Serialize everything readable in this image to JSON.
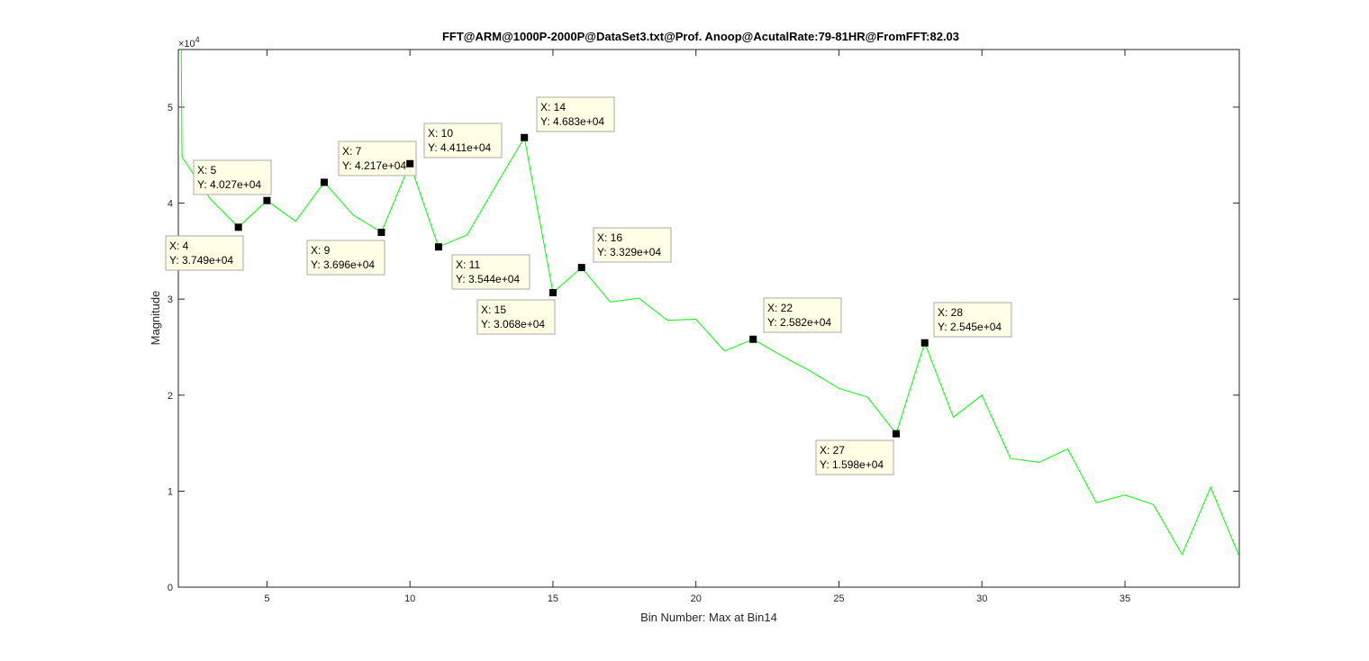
{
  "chart_data": {
    "type": "line",
    "title": "FFT@ARM@1000P-2000P@DataSet3.txt@Prof. Anoop@AcutalRate:79-81HR@FromFFT:82.03",
    "xlabel": "Bin Number: Max at Bin14",
    "ylabel": "Magnitude",
    "y_exponent_label": "×10",
    "y_exponent_power": "4",
    "xlim": [
      1.9,
      39.0
    ],
    "ylim": [
      0,
      56000
    ],
    "x_ticks": [
      5,
      10,
      15,
      20,
      25,
      30,
      35
    ],
    "x_tick_labels": [
      "5",
      "10",
      "15",
      "20",
      "25",
      "30",
      "35"
    ],
    "y_ticks": [
      0,
      10000,
      20000,
      30000,
      40000,
      50000
    ],
    "y_tick_labels": [
      "0",
      "1",
      "2",
      "3",
      "4",
      "5"
    ],
    "grid": false,
    "line_color": "#00ff00",
    "series": [
      {
        "x": [
          2,
          2.03,
          3,
          4,
          5,
          6,
          7,
          8,
          9,
          10,
          11,
          12,
          13,
          14,
          15,
          16,
          17,
          18,
          19,
          20,
          21,
          22,
          23,
          24,
          25,
          26,
          27,
          28,
          29,
          30,
          31,
          32,
          33,
          34,
          35,
          36,
          37,
          38,
          39
        ],
        "values": [
          56000,
          44800,
          40500,
          37490,
          40270,
          38100,
          42170,
          38800,
          36960,
          44110,
          35440,
          36700,
          41800,
          46830,
          30680,
          33290,
          29700,
          30100,
          27800,
          27900,
          24600,
          25820,
          24100,
          22500,
          20700,
          19800,
          15980,
          25450,
          17700,
          20000,
          13400,
          13000,
          14400,
          8800,
          9600,
          8600,
          3400,
          10400,
          3200
        ]
      }
    ],
    "datatips": [
      {
        "x": 4,
        "y": 37490,
        "x_label": "X: 4",
        "y_label": "Y: 3.749e+04"
      },
      {
        "x": 5,
        "y": 40270,
        "x_label": "X: 5",
        "y_label": "Y: 4.027e+04"
      },
      {
        "x": 7,
        "y": 42170,
        "x_label": "X: 7",
        "y_label": "Y: 4.217e+04"
      },
      {
        "x": 9,
        "y": 36960,
        "x_label": "X: 9",
        "y_label": "Y: 3.696e+04"
      },
      {
        "x": 10,
        "y": 44110,
        "x_label": "X: 10",
        "y_label": "Y: 4.411e+04"
      },
      {
        "x": 11,
        "y": 35440,
        "x_label": "X: 11",
        "y_label": "Y: 3.544e+04"
      },
      {
        "x": 14,
        "y": 46830,
        "x_label": "X: 14",
        "y_label": "Y: 4.683e+04"
      },
      {
        "x": 15,
        "y": 30680,
        "x_label": "X: 15",
        "y_label": "Y: 3.068e+04"
      },
      {
        "x": 16,
        "y": 33290,
        "x_label": "X: 16",
        "y_label": "Y: 3.329e+04"
      },
      {
        "x": 22,
        "y": 25820,
        "x_label": "X: 22",
        "y_label": "Y: 2.582e+04"
      },
      {
        "x": 27,
        "y": 15980,
        "x_label": "X: 27",
        "y_label": "Y: 1.598e+04"
      },
      {
        "x": 28,
        "y": 25450,
        "x_label": "X: 28",
        "y_label": "Y: 2.545e+04"
      }
    ]
  }
}
